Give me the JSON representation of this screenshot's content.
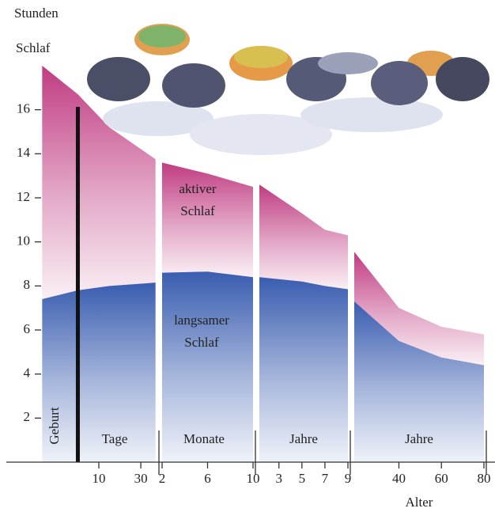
{
  "chart_data": {
    "type": "area",
    "y_label_lines": [
      "Stunden",
      "Schlaf"
    ],
    "x_label": "Alter",
    "ylim": [
      0,
      18
    ],
    "yticks": [
      2,
      4,
      6,
      8,
      10,
      12,
      14,
      16
    ],
    "series": [
      {
        "name_lines": [
          "langsamer",
          "Schlaf"
        ],
        "color": "#3a5db0"
      },
      {
        "name_lines": [
          "aktiver",
          "Schlaf"
        ],
        "color": "#c03c82"
      }
    ],
    "birth": {
      "x": 0,
      "text": "Geburt"
    },
    "panels": [
      {
        "label": "Tage",
        "xlim": [
          -17.5,
          37.5
        ],
        "xticks": [
          10,
          30
        ],
        "x": [
          -17,
          0,
          15,
          37
        ],
        "series": [
          {
            "values": [
              7.4,
              7.8,
              8.0,
              8.15
            ]
          },
          {
            "values": [
              10.6,
              8.9,
              7.2,
              5.6
            ]
          }
        ]
      },
      {
        "label": "Monate",
        "xlim": [
          2,
          10
        ],
        "xticks": [
          2,
          6,
          10
        ],
        "x": [
          2,
          6,
          10
        ],
        "series": [
          {
            "values": [
              8.6,
              8.65,
              8.4
            ]
          },
          {
            "values": [
              5.0,
              4.45,
              4.1
            ]
          }
        ]
      },
      {
        "label": "Jahre",
        "xlim": [
          1.3,
          9
        ],
        "xticks": [
          3,
          5,
          7,
          9
        ],
        "x": [
          1.3,
          5,
          7,
          9
        ],
        "series": [
          {
            "values": [
              8.4,
              8.2,
              8.0,
              7.85
            ]
          },
          {
            "values": [
              4.2,
              3.1,
              2.55,
              2.45
            ]
          }
        ]
      },
      {
        "label": "Jahre",
        "xlim": [
          19,
          80
        ],
        "xticks": [
          40,
          60,
          80
        ],
        "x": [
          19,
          40,
          60,
          80
        ],
        "series": [
          {
            "values": [
              7.3,
              5.5,
              4.75,
              4.4
            ]
          },
          {
            "values": [
              2.25,
              1.5,
              1.4,
              1.4
            ]
          }
        ]
      }
    ]
  }
}
